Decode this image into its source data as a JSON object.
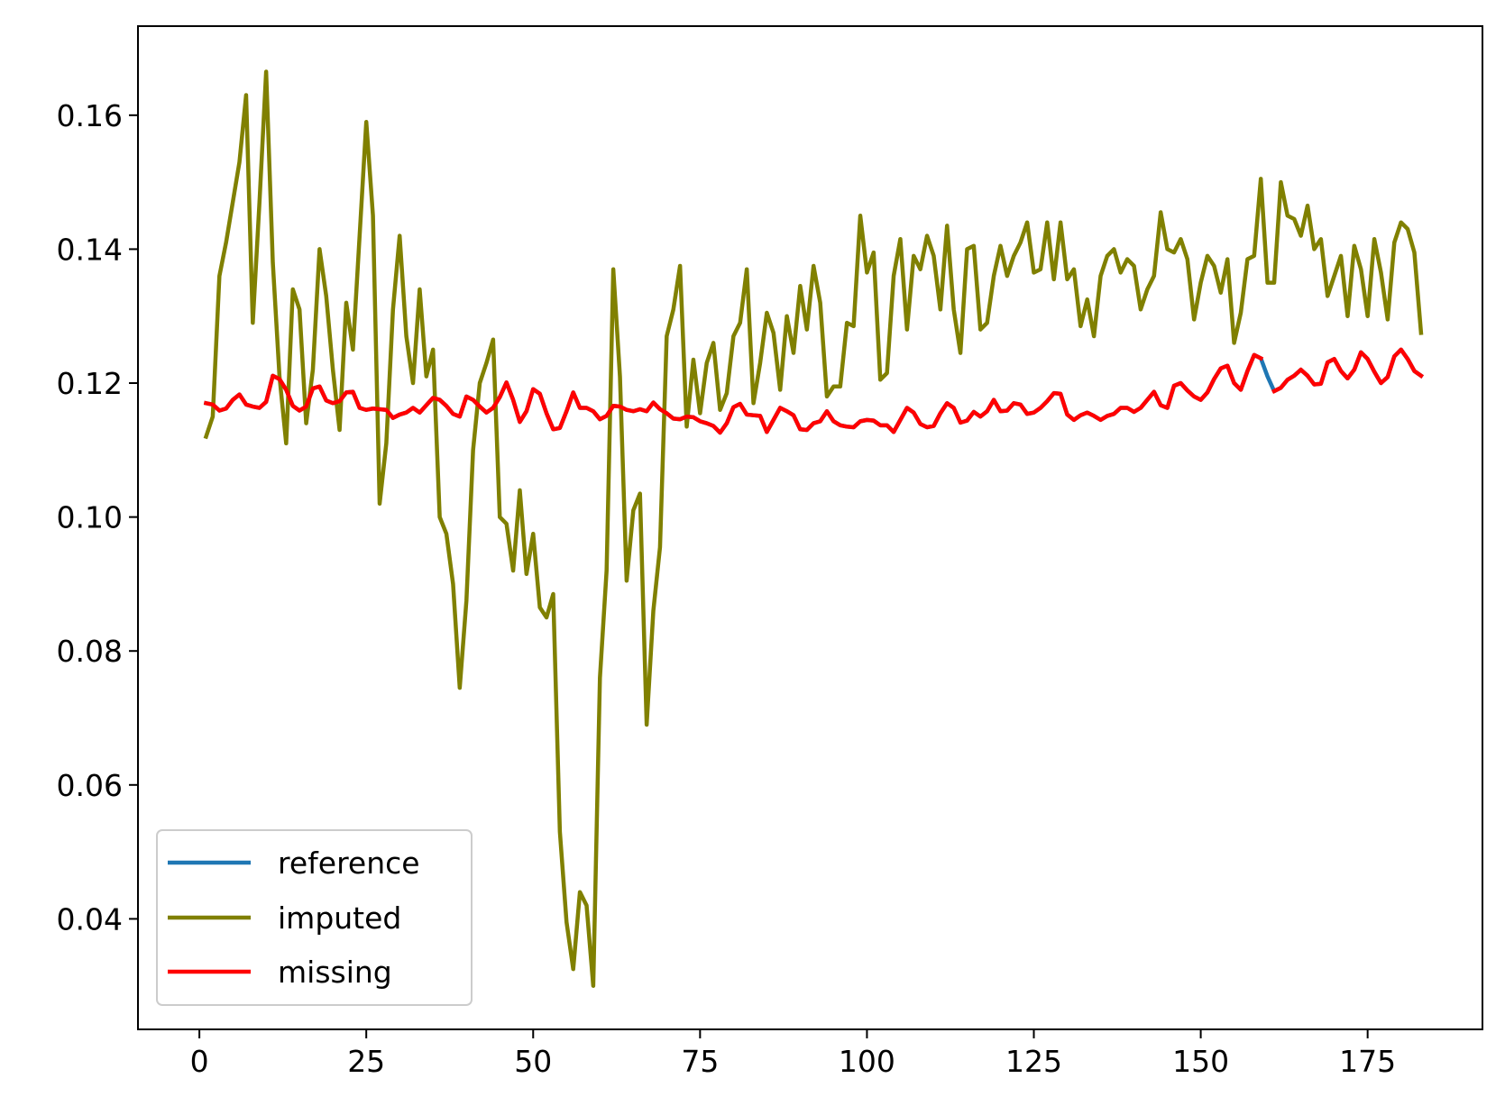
{
  "chart_data": {
    "type": "line",
    "title": "",
    "xlabel": "",
    "ylabel": "",
    "xlim": [
      -9.2,
      192.2
    ],
    "ylim": [
      0.0235,
      0.1733
    ],
    "xticks": [
      0,
      25,
      50,
      75,
      100,
      125,
      150,
      175
    ],
    "xtick_labels": [
      "0",
      "25",
      "50",
      "75",
      "100",
      "125",
      "150",
      "175"
    ],
    "yticks": [
      0.04,
      0.06,
      0.08,
      0.1,
      0.12,
      0.14,
      0.16
    ],
    "ytick_labels": [
      "0.04",
      "0.06",
      "0.08",
      "0.10",
      "0.12",
      "0.14",
      "0.16"
    ],
    "grid": false,
    "legend_position": "lower-left",
    "x_start": 1,
    "series": [
      {
        "name": "reference",
        "color": "#1f77b4",
        "values": [
          0.117,
          0.1168,
          0.1159,
          0.1162,
          0.1175,
          0.1183,
          0.1168,
          0.1165,
          0.1163,
          0.1172,
          0.1211,
          0.1206,
          0.119,
          0.1166,
          0.1159,
          0.1165,
          0.1192,
          0.1195,
          0.1174,
          0.117,
          0.1173,
          0.1186,
          0.1187,
          0.1163,
          0.116,
          0.1162,
          0.1161,
          0.116,
          0.1148,
          0.1153,
          0.1156,
          0.1163,
          0.1156,
          0.1167,
          0.1178,
          0.1175,
          0.1166,
          0.1154,
          0.115,
          0.118,
          0.1175,
          0.1165,
          0.1156,
          0.1163,
          0.1179,
          0.1201,
          0.1175,
          0.1142,
          0.1158,
          0.1191,
          0.1184,
          0.1155,
          0.1131,
          0.1133,
          0.1158,
          0.1186,
          0.1163,
          0.1163,
          0.1158,
          0.1146,
          0.1151,
          0.1166,
          0.1165,
          0.116,
          0.1158,
          0.1161,
          0.1158,
          0.1171,
          0.1161,
          0.1155,
          0.1147,
          0.1146,
          0.115,
          0.1149,
          0.1143,
          0.114,
          0.1136,
          0.1126,
          0.114,
          0.1164,
          0.1169,
          0.1153,
          0.1152,
          0.1151,
          0.1127,
          0.1145,
          0.1163,
          0.1158,
          0.1152,
          0.1131,
          0.113,
          0.114,
          0.1143,
          0.1158,
          0.1143,
          0.1137,
          0.1135,
          0.1134,
          0.1143,
          0.1145,
          0.1144,
          0.1137,
          0.1137,
          0.1127,
          0.1145,
          0.1163,
          0.1156,
          0.1139,
          0.1134,
          0.1136,
          0.1155,
          0.117,
          0.1163,
          0.1141,
          0.1144,
          0.1157,
          0.115,
          0.1158,
          0.1175,
          0.1158,
          0.1159,
          0.117,
          0.1168,
          0.1154,
          0.1156,
          0.1163,
          0.1173,
          0.1185,
          0.1184,
          0.1153,
          0.1145,
          0.1152,
          0.1156,
          0.1151,
          0.1145,
          0.1151,
          0.1154,
          0.1163,
          0.1163,
          0.1157,
          0.1163,
          0.1175,
          0.1187,
          0.1167,
          0.1163,
          0.1196,
          0.12,
          0.1189,
          0.118,
          0.1175,
          0.1186,
          0.1206,
          0.1222,
          0.1226,
          0.12,
          0.119,
          0.1218,
          0.1242,
          0.1237,
          0.121,
          0.1188,
          0.1193,
          0.1205,
          0.1211,
          0.122,
          0.1211,
          0.1198,
          0.1199,
          0.1231,
          0.1236,
          0.1218,
          0.1207,
          0.122,
          0.1246,
          0.1236,
          0.1217,
          0.12,
          0.1209,
          0.124,
          0.125,
          0.1236,
          0.1218,
          0.1211
        ]
      },
      {
        "name": "imputed",
        "color": "#808000",
        "values": [
          0.112,
          0.115,
          0.136,
          0.141,
          0.147,
          0.153,
          0.163,
          0.129,
          0.147,
          0.1665,
          0.138,
          0.121,
          0.111,
          0.134,
          0.131,
          0.114,
          0.122,
          0.14,
          0.133,
          0.122,
          0.113,
          0.132,
          0.125,
          0.142,
          0.159,
          0.145,
          0.102,
          0.111,
          0.131,
          0.142,
          0.127,
          0.12,
          0.134,
          0.121,
          0.125,
          0.1,
          0.0975,
          0.09,
          0.0745,
          0.0875,
          0.11,
          0.12,
          0.123,
          0.1265,
          0.1,
          0.099,
          0.092,
          0.104,
          0.0915,
          0.0975,
          0.0865,
          0.085,
          0.0885,
          0.053,
          0.0395,
          0.0325,
          0.044,
          0.042,
          0.03,
          0.076,
          0.092,
          0.137,
          0.121,
          0.0905,
          0.101,
          0.1035,
          0.069,
          0.086,
          0.0955,
          0.127,
          0.131,
          0.1375,
          0.1135,
          0.1235,
          0.1155,
          0.123,
          0.126,
          0.116,
          0.1185,
          0.127,
          0.129,
          0.137,
          0.117,
          0.123,
          0.1305,
          0.1275,
          0.119,
          0.13,
          0.1245,
          0.1345,
          0.128,
          0.1375,
          0.132,
          0.118,
          0.1195,
          0.1195,
          0.129,
          0.1285,
          0.145,
          0.1365,
          0.1395,
          0.1205,
          0.1215,
          0.136,
          0.1415,
          0.128,
          0.139,
          0.137,
          0.142,
          0.139,
          0.131,
          0.1435,
          0.131,
          0.1245,
          0.14,
          0.1405,
          0.128,
          0.129,
          0.136,
          0.1405,
          0.136,
          0.139,
          0.141,
          0.144,
          0.1365,
          0.137,
          0.144,
          0.1355,
          0.144,
          0.1355,
          0.137,
          0.1285,
          0.1325,
          0.127,
          0.136,
          0.139,
          0.14,
          0.1365,
          0.1385,
          0.1375,
          0.131,
          0.134,
          0.136,
          0.1455,
          0.14,
          0.1395,
          0.1415,
          0.1385,
          0.1295,
          0.135,
          0.139,
          0.1375,
          0.1335,
          0.1385,
          0.126,
          0.1305,
          0.1385,
          0.139,
          0.1505,
          0.135,
          0.135,
          0.15,
          0.145,
          0.1445,
          0.142,
          0.1465,
          0.14,
          0.1415,
          0.133,
          0.136,
          0.139,
          0.13,
          0.1405,
          0.137,
          0.13,
          0.1415,
          0.1365,
          0.1295,
          0.141,
          0.144,
          0.143,
          0.1395,
          0.1275
        ]
      },
      {
        "name": "missing",
        "color": "#ff0000",
        "segments": [
          {
            "x_start": 1,
            "values": [
              0.117,
              0.1168,
              0.1159,
              0.1162,
              0.1175,
              0.1183,
              0.1168,
              0.1165,
              0.1163,
              0.1172,
              0.1211,
              0.1206,
              0.119,
              0.1166,
              0.1159,
              0.1165,
              0.1192,
              0.1195,
              0.1174,
              0.117,
              0.1173,
              0.1186,
              0.1187,
              0.1163,
              0.116,
              0.1162,
              0.1161,
              0.116,
              0.1148,
              0.1153,
              0.1156,
              0.1163,
              0.1156,
              0.1167,
              0.1178,
              0.1175,
              0.1166,
              0.1154,
              0.115,
              0.118,
              0.1175,
              0.1165,
              0.1156,
              0.1163,
              0.1179,
              0.1201,
              0.1175,
              0.1142,
              0.1158,
              0.1191,
              0.1184,
              0.1155,
              0.1131,
              0.1133,
              0.1158,
              0.1186,
              0.1163,
              0.1163,
              0.1158,
              0.1146,
              0.1151,
              0.1166,
              0.1165,
              0.116,
              0.1158,
              0.1161,
              0.1158,
              0.1171,
              0.1161,
              0.1155,
              0.1147,
              0.1146,
              0.115,
              0.1149,
              0.1143,
              0.114,
              0.1136,
              0.1126,
              0.114,
              0.1164,
              0.1169,
              0.1153,
              0.1152,
              0.1151,
              0.1127,
              0.1145,
              0.1163,
              0.1158,
              0.1152,
              0.1131,
              0.113,
              0.114,
              0.1143,
              0.1158,
              0.1143,
              0.1137,
              0.1135,
              0.1134,
              0.1143,
              0.1145,
              0.1144,
              0.1137,
              0.1137,
              0.1127,
              0.1145,
              0.1163,
              0.1156,
              0.1139,
              0.1134,
              0.1136,
              0.1155,
              0.117,
              0.1163,
              0.1141,
              0.1144,
              0.1157,
              0.115,
              0.1158,
              0.1175,
              0.1158,
              0.1159,
              0.117,
              0.1168,
              0.1154,
              0.1156,
              0.1163,
              0.1173,
              0.1185,
              0.1184,
              0.1153,
              0.1145,
              0.1152,
              0.1156,
              0.1151,
              0.1145,
              0.1151,
              0.1154,
              0.1163,
              0.1163,
              0.1157,
              0.1163,
              0.1175,
              0.1187,
              0.1167,
              0.1163,
              0.1196,
              0.12,
              0.1189,
              0.118,
              0.1175,
              0.1186,
              0.1206,
              0.1222,
              0.1226,
              0.12,
              0.119,
              0.1218,
              0.1242,
              0.1237
            ]
          },
          {
            "x_start": 161,
            "values": [
              0.1188,
              0.1193,
              0.1205,
              0.1211,
              0.122,
              0.1211,
              0.1198,
              0.1199,
              0.1231,
              0.1236,
              0.1218,
              0.1207,
              0.122,
              0.1246,
              0.1236,
              0.1217,
              0.12,
              0.1209,
              0.124,
              0.125,
              0.1236,
              0.1218,
              0.1211
            ]
          }
        ]
      }
    ]
  }
}
